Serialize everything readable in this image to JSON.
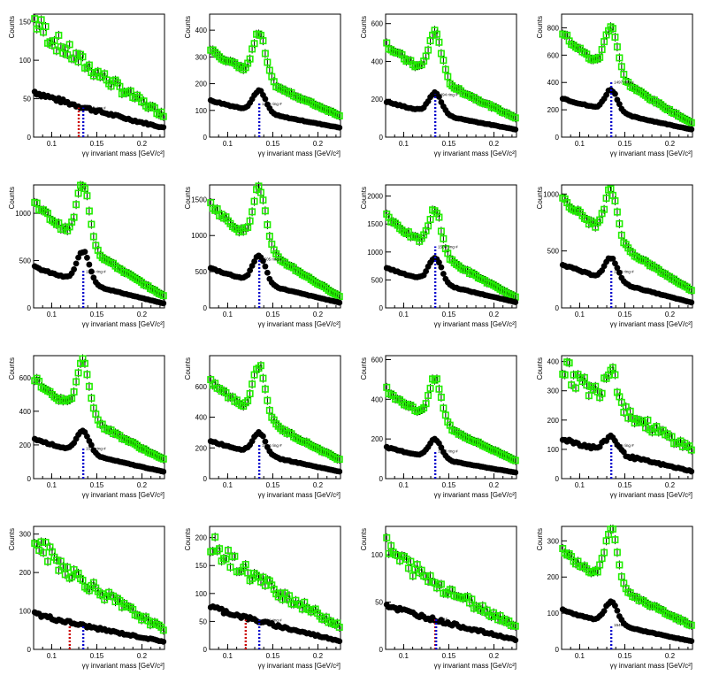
{
  "chart_data": [
    {
      "type": "scatter",
      "tag": "1465",
      "ring_label": "ring #",
      "ylim": [
        0,
        160
      ],
      "yticks": [
        0,
        50,
        100,
        150
      ],
      "xlim": [
        0.08,
        0.225
      ],
      "xticks": [
        0.1,
        0.15,
        0.2
      ],
      "bg_level": 60,
      "bg_end": 12,
      "peak": 0,
      "green_start": 155,
      "green_end": 28,
      "green_peak": 0,
      "red_line": 0.13,
      "blue_line": 0.135,
      "line_top": 48,
      "noisy": true
    },
    {
      "type": "scatter",
      "tag": "1489",
      "ring_label": "ring #",
      "ylim": [
        0,
        460
      ],
      "yticks": [
        0,
        100,
        200,
        300,
        400
      ],
      "xlim": [
        0.08,
        0.225
      ],
      "xticks": [
        0.1,
        0.15,
        0.2
      ],
      "bg_level": 140,
      "bg_end": 35,
      "peak": 80,
      "green_start": 340,
      "green_end": 80,
      "green_peak": 165,
      "red_line": null,
      "blue_line": 0.135,
      "line_top": 55,
      "noisy": false
    },
    {
      "type": "scatter",
      "tag": "1494",
      "ring_label": "ring #",
      "ylim": [
        0,
        650
      ],
      "yticks": [
        0,
        200,
        400,
        600
      ],
      "xlim": [
        0.08,
        0.225
      ],
      "xticks": [
        0.1,
        0.15,
        0.2
      ],
      "bg_level": 190,
      "bg_end": 40,
      "peak": 110,
      "green_start": 500,
      "green_end": 100,
      "green_peak": 240,
      "red_line": null,
      "blue_line": 0.135,
      "line_top": 70,
      "noisy": false
    },
    {
      "type": "scatter",
      "tag": "1497",
      "ring_label": "ring #",
      "ylim": [
        0,
        900
      ],
      "yticks": [
        0,
        200,
        400,
        600,
        800
      ],
      "xlim": [
        0.08,
        0.225
      ],
      "xticks": [
        0.1,
        0.15,
        0.2
      ],
      "bg_level": 290,
      "bg_end": 55,
      "peak": 160,
      "green_start": 780,
      "green_end": 100,
      "green_peak": 350,
      "red_line": null,
      "blue_line": 0.135,
      "line_top": 90,
      "noisy": false
    },
    {
      "type": "scatter",
      "tag": "1503",
      "ring_label": "ring #",
      "ylim": [
        0,
        1300
      ],
      "yticks": [
        0,
        500,
        1000
      ],
      "xlim": [
        0.08,
        0.225
      ],
      "xticks": [
        0.1,
        0.15,
        0.2
      ],
      "bg_level": 440,
      "bg_end": 45,
      "peak": 330,
      "green_start": 1150,
      "green_end": 120,
      "green_peak": 650,
      "red_line": null,
      "blue_line": 0.135,
      "line_top": 60,
      "noisy": false
    },
    {
      "type": "scatter",
      "tag": "1505",
      "ring_label": "ring #",
      "ylim": [
        0,
        1700
      ],
      "yticks": [
        0,
        500,
        1000,
        1500
      ],
      "xlim": [
        0.08,
        0.225
      ],
      "xticks": [
        0.1,
        0.15,
        0.2
      ],
      "bg_level": 560,
      "bg_end": 70,
      "peak": 380,
      "green_start": 1480,
      "green_end": 150,
      "green_peak": 800,
      "red_line": null,
      "blue_line": 0.135,
      "line_top": 80,
      "noisy": false
    },
    {
      "type": "scatter",
      "tag": "1508",
      "ring_label": "ring #",
      "ylim": [
        0,
        2200
      ],
      "yticks": [
        0,
        500,
        1000,
        1500,
        2000
      ],
      "xlim": [
        0.08,
        0.225
      ],
      "xticks": [
        0.1,
        0.15,
        0.2
      ],
      "bg_level": 730,
      "bg_end": 100,
      "peak": 450,
      "green_start": 1700,
      "green_end": 180,
      "green_peak": 750,
      "red_line": null,
      "blue_line": 0.135,
      "line_top": 100,
      "noisy": false
    },
    {
      "type": "scatter",
      "tag": "1529",
      "ring_label": "ring #",
      "ylim": [
        0,
        1080
      ],
      "yticks": [
        0,
        500,
        1000
      ],
      "xlim": [
        0.08,
        0.225
      ],
      "xticks": [
        0.1,
        0.15,
        0.2
      ],
      "bg_level": 390,
      "bg_end": 45,
      "peak": 200,
      "green_start": 1000,
      "green_end": 150,
      "green_peak": 420,
      "red_line": null,
      "blue_line": 0.135,
      "line_top": 60,
      "noisy": false
    },
    {
      "type": "scatter",
      "tag": "1532",
      "ring_label": "ring #",
      "ylim": [
        0,
        730
      ],
      "yticks": [
        0,
        200,
        400,
        600
      ],
      "xlim": [
        0.08,
        0.225
      ],
      "xticks": [
        0.1,
        0.15,
        0.2
      ],
      "bg_level": 240,
      "bg_end": 40,
      "peak": 130,
      "green_start": 610,
      "green_end": 110,
      "green_peak": 320,
      "red_line": null,
      "blue_line": 0.135,
      "line_top": 50,
      "noisy": false
    },
    {
      "type": "scatter",
      "tag": "1534",
      "ring_label": "ring #",
      "ylim": [
        0,
        800
      ],
      "yticks": [
        0,
        200,
        400,
        600
      ],
      "xlim": [
        0.08,
        0.225
      ],
      "xticks": [
        0.1,
        0.15,
        0.2
      ],
      "bg_level": 250,
      "bg_end": 45,
      "peak": 140,
      "green_start": 650,
      "green_end": 120,
      "green_peak": 330,
      "red_line": null,
      "blue_line": 0.135,
      "line_top": 55,
      "noisy": false
    },
    {
      "type": "scatter",
      "tag": "1537",
      "ring_label": "ring #",
      "ylim": [
        0,
        620
      ],
      "yticks": [
        0,
        200,
        400,
        600
      ],
      "xlim": [
        0.08,
        0.225
      ],
      "xticks": [
        0.1,
        0.15,
        0.2
      ],
      "bg_level": 160,
      "bg_end": 30,
      "peak": 95,
      "green_start": 460,
      "green_end": 90,
      "green_peak": 210,
      "red_line": null,
      "blue_line": 0.135,
      "line_top": 45,
      "noisy": false
    },
    {
      "type": "scatter",
      "tag": "1539",
      "ring_label": "ring #",
      "ylim": [
        0,
        420
      ],
      "yticks": [
        0,
        100,
        200,
        300,
        400
      ],
      "xlim": [
        0.08,
        0.225
      ],
      "xticks": [
        0.1,
        0.15,
        0.2
      ],
      "bg_level": 140,
      "bg_end": 25,
      "peak": 55,
      "green_start": 390,
      "green_end": 100,
      "green_peak": 130,
      "red_line": null,
      "blue_line": 0.135,
      "line_top": 55,
      "noisy": true
    },
    {
      "type": "scatter",
      "tag": "",
      "ring_label": "",
      "ylim": [
        0,
        320
      ],
      "yticks": [
        0,
        100,
        200,
        300
      ],
      "xlim": [
        0.08,
        0.225
      ],
      "xticks": [
        0.1,
        0.15,
        0.2
      ],
      "bg_level": 95,
      "bg_end": 20,
      "peak": 0,
      "green_start": 290,
      "green_end": 50,
      "green_peak": 0,
      "red_line": 0.12,
      "blue_line": 0.135,
      "line_top": 40,
      "noisy": true
    },
    {
      "type": "scatter",
      "tag": "1544",
      "ring_label": "ring #",
      "ylim": [
        0,
        220
      ],
      "yticks": [
        0,
        50,
        100,
        150,
        200
      ],
      "xlim": [
        0.08,
        0.225
      ],
      "xticks": [
        0.1,
        0.15,
        0.2
      ],
      "bg_level": 78,
      "bg_end": 15,
      "peak": 0,
      "green_start": 195,
      "green_end": 42,
      "green_peak": 0,
      "red_line": 0.12,
      "blue_line": 0.135,
      "line_top": 48,
      "noisy": true
    },
    {
      "type": "scatter",
      "tag": "1546",
      "ring_label": "",
      "ylim": [
        0,
        130
      ],
      "yticks": [
        0,
        50,
        100
      ],
      "xlim": [
        0.08,
        0.225
      ],
      "xticks": [
        0.1,
        0.15,
        0.2
      ],
      "bg_level": 48,
      "bg_end": 10,
      "peak": 0,
      "green_start": 110,
      "green_end": 25,
      "green_peak": 0,
      "red_line": 0.135,
      "blue_line": 0.136,
      "line_top": 50,
      "noisy": true
    },
    {
      "type": "scatter",
      "tag": "1549",
      "ring_label": "",
      "ylim": [
        0,
        340
      ],
      "yticks": [
        0,
        100,
        200,
        300
      ],
      "xlim": [
        0.08,
        0.225
      ],
      "xticks": [
        0.1,
        0.15,
        0.2
      ],
      "bg_level": 110,
      "bg_end": 22,
      "peak": 60,
      "green_start": 280,
      "green_end": 65,
      "green_peak": 150,
      "red_line": null,
      "blue_line": 0.135,
      "line_top": 40,
      "noisy": false
    }
  ],
  "xlabel": "γγ invariant mass [GeV/c²]",
  "ylabel": "Counts",
  "colors": {
    "signal": "#22ee00",
    "background": "#000000",
    "red_line": "#cc0000",
    "blue_line": "#0000cc"
  }
}
